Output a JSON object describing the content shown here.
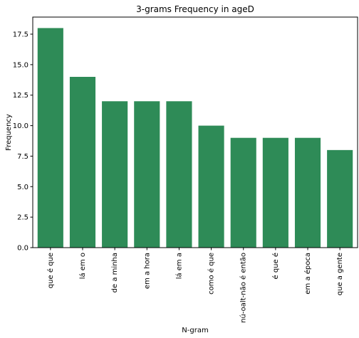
{
  "chart_data": {
    "type": "bar",
    "title": "3-grams Frequency in ageD",
    "xlabel": "N-gram",
    "ylabel": "Frequency",
    "categories": [
      "que é que",
      "lá em o",
      "de a minha",
      "em a hora",
      "lá em a",
      "como é que",
      "nú-oalt-não é então",
      "é que é",
      "em a época",
      "que a gente"
    ],
    "values": [
      18,
      14,
      12,
      12,
      12,
      10,
      9,
      9,
      9,
      8
    ],
    "ylim": [
      0,
      18.9
    ],
    "yticks": [
      0.0,
      2.5,
      5.0,
      7.5,
      10.0,
      12.5,
      15.0,
      17.5
    ],
    "ytick_labels": [
      "0.0",
      "2.5",
      "5.0",
      "7.5",
      "10.0",
      "12.5",
      "15.0",
      "17.5"
    ],
    "bar_color": "#2e8b57",
    "grid": false,
    "legend": "none"
  }
}
